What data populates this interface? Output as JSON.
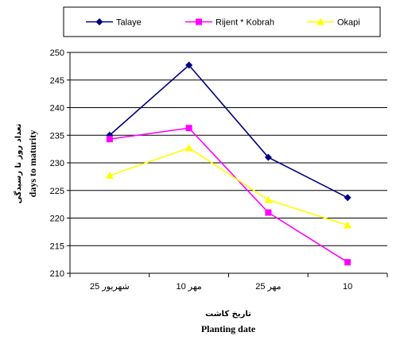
{
  "chart_data": {
    "type": "line",
    "categories": [
      "شهریور 25",
      "مهر 10",
      "مهر 25",
      "10"
    ],
    "series": [
      {
        "name": "Talaye",
        "values": [
          235,
          247.7,
          231,
          223.7
        ],
        "color": "#000080",
        "marker": "diamond"
      },
      {
        "name": "Rijent * Kobrah",
        "values": [
          234.3,
          236.3,
          221,
          212
        ],
        "color": "#ff00ff",
        "marker": "square"
      },
      {
        "name": "Okapi",
        "values": [
          227.7,
          232.7,
          223.3,
          218.7
        ],
        "color": "#ffff00",
        "marker": "triangle"
      }
    ],
    "ylim": [
      210,
      250
    ],
    "ytick_step": 5,
    "yticks": [
      "210",
      "215",
      "220",
      "225",
      "230",
      "235",
      "240",
      "245",
      "250"
    ],
    "ylabel": "days to maturity",
    "ylabel_fa": "تعداد روز تا رسیدگی",
    "xlabel": "Planting date",
    "xlabel_fa": "تاریخ کاشت",
    "grid": "horizontal",
    "legend_position": "top"
  }
}
